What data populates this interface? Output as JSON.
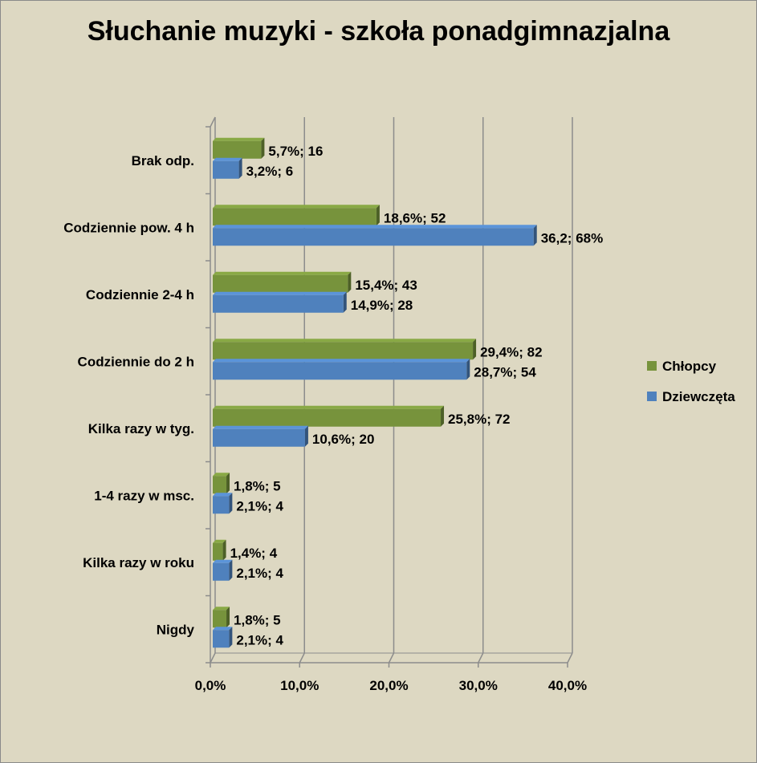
{
  "chart_data": {
    "type": "bar",
    "orientation": "horizontal",
    "title": "Słuchanie muzyki - szkoła ponadgimnazjalna",
    "xlabel": "",
    "ylabel": "",
    "xlim": [
      0,
      40
    ],
    "x_ticks": [
      "0,0%",
      "10,0%",
      "20,0%",
      "30,0%",
      "40,0%"
    ],
    "grid": true,
    "legend_position": "right",
    "categories": [
      "Nigdy",
      "Kilka razy w roku",
      "1-4 razy w msc.",
      "Kilka razy w tyg.",
      "Codziennie do 2 h",
      "Codziennie 2-4 h",
      "Codziennie pow. 4 h",
      "Brak odp."
    ],
    "series": [
      {
        "name": "Chłopcy",
        "color": "#77933c",
        "values": [
          1.8,
          1.4,
          1.8,
          25.8,
          29.4,
          15.4,
          18.6,
          5.7
        ],
        "labels": [
          "1,8%; 5",
          "1,4%; 4",
          "1,8%; 5",
          "25,8%; 72",
          "29,4%; 82",
          "15,4%; 43",
          "18,6%; 52",
          "5,7%; 16"
        ]
      },
      {
        "name": "Dziewczęta",
        "color": "#4f81bd",
        "values": [
          2.1,
          2.1,
          2.1,
          10.6,
          28.7,
          14.9,
          36.2,
          3.2
        ],
        "labels": [
          "2,1%; 4",
          "2,1%; 4",
          "2,1%; 4",
          "10,6%; 20",
          "28,7%; 54",
          "14,9%; 28",
          "36,2; 68%",
          "3,2%; 6"
        ]
      }
    ]
  }
}
